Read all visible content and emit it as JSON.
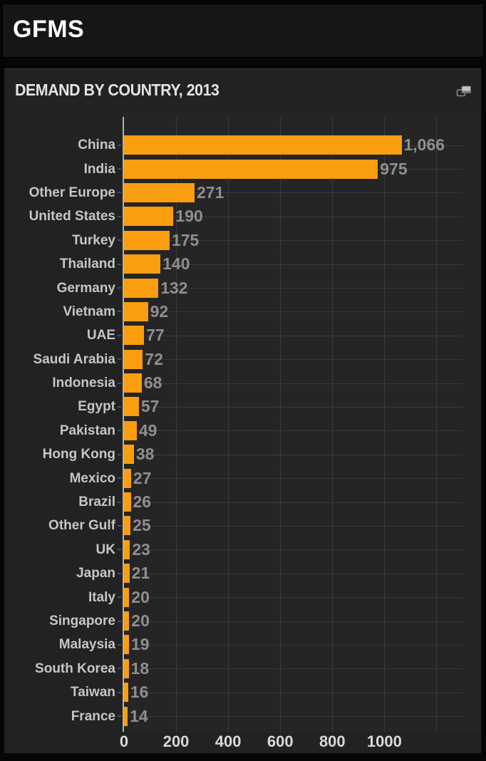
{
  "app": {
    "title": "GFMS"
  },
  "panel": {
    "title": "DEMAND BY COUNTRY, 2013",
    "icon": "export-icon"
  },
  "colors": {
    "bar": "#FA9E0F",
    "panel_bg": "#222222",
    "plot_bg": "#252525",
    "gridline": "#3a3a3a",
    "axis_line": "#aab4b8",
    "category_label": "#c6c6c6",
    "value_label": "#8f8f8f",
    "tick_label": "#d9d9d9",
    "title_text": "#e2e4e5",
    "brand_text": "#ffffff"
  },
  "chart_data": {
    "type": "bar",
    "orientation": "horizontal",
    "title": "DEMAND BY COUNTRY, 2013",
    "categories": [
      "China",
      "India",
      "Other Europe",
      "United States",
      "Turkey",
      "Thailand",
      "Germany",
      "Vietnam",
      "UAE",
      "Saudi Arabia",
      "Indonesia",
      "Egypt",
      "Pakistan",
      "Hong Kong",
      "Mexico",
      "Brazil",
      "Other Gulf",
      "UK",
      "Japan",
      "Italy",
      "Singapore",
      "Malaysia",
      "South Korea",
      "Taiwan",
      "France"
    ],
    "values": [
      1066,
      975,
      271,
      190,
      175,
      140,
      132,
      92,
      77,
      72,
      68,
      57,
      49,
      38,
      27,
      26,
      25,
      23,
      21,
      20,
      20,
      19,
      18,
      16,
      14
    ],
    "value_labels": [
      "1,066",
      "975",
      "271",
      "190",
      "175",
      "140",
      "132",
      "92",
      "77",
      "72",
      "68",
      "57",
      "49",
      "38",
      "27",
      "26",
      "25",
      "23",
      "21",
      "20",
      "20",
      "19",
      "18",
      "16",
      "14"
    ],
    "x_ticks": [
      0,
      200,
      400,
      600,
      800,
      1000
    ],
    "xlim": [
      0,
      1300
    ],
    "gridline_step": 200,
    "gridline_max": 1200,
    "grid": "on",
    "legend": "none",
    "bar_color": "#FA9E0F"
  }
}
